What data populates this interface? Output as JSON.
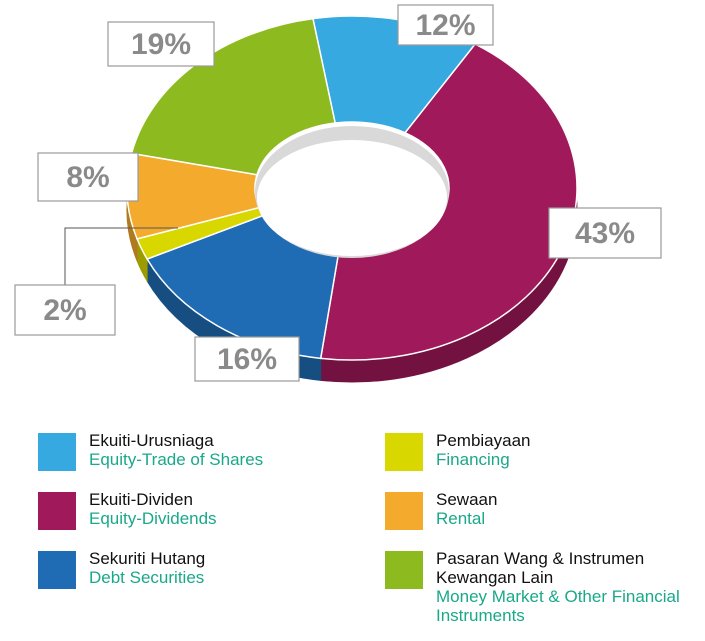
{
  "chart_data": {
    "type": "pie",
    "categories": [
      "Ekuiti-Urusniaga",
      "Ekuiti-Dividen",
      "Sekuriti Hutang",
      "Pembiayaan",
      "Sewaan",
      "Pasaran Wang & Instrumen Kewangan Lain"
    ],
    "categories_en": [
      "Equity-Trade of Shares",
      "Equity-Dividends",
      "Debt Securities",
      "Financing",
      "Rental",
      "Money Market & Other Financial Instruments"
    ],
    "values": [
      12,
      43,
      16,
      2,
      8,
      19
    ],
    "value_labels": [
      "12%",
      "43%",
      "16%",
      "2%",
      "8%",
      "19%"
    ],
    "colors": [
      "#36a9e1",
      "#a0195a",
      "#1f6cb5",
      "#d8d800",
      "#f4aa2d",
      "#8dba1e"
    ],
    "donut": true
  }
}
